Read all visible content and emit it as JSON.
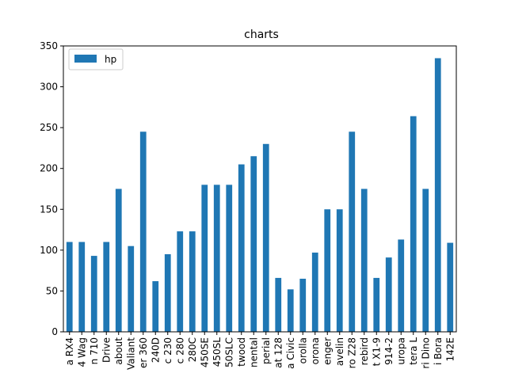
{
  "chart_data": {
    "type": "bar",
    "title": "charts",
    "xlabel": "",
    "ylabel": "",
    "ylim": [
      0,
      350
    ],
    "yticks": [
      0,
      50,
      100,
      150,
      200,
      250,
      300,
      350
    ],
    "legend": {
      "position": "top-left",
      "entries": [
        "hp"
      ]
    },
    "grid": false,
    "bar_color": "#1f77b4",
    "categories": [
      "a RX4",
      "4 Wag",
      "n 710",
      "Drive",
      "about",
      "Valiant",
      "er 360",
      "240D",
      "c 230",
      "c 280",
      "280C",
      "450SE",
      "450SL",
      "50SLC",
      "twood",
      "nental",
      "perial",
      "at 128",
      "a Civic",
      "orolla",
      "orona",
      "enger",
      "avelin",
      "ro Z28",
      "rebird",
      "t X1-9",
      "914-2",
      "uropa",
      "tera L",
      "ri Dino",
      "i Bora",
      "142E"
    ],
    "series": [
      {
        "name": "hp",
        "values": [
          110,
          110,
          93,
          110,
          175,
          105,
          245,
          62,
          95,
          123,
          123,
          180,
          180,
          180,
          205,
          215,
          230,
          66,
          52,
          65,
          97,
          150,
          150,
          245,
          175,
          66,
          91,
          113,
          264,
          175,
          335,
          109
        ]
      }
    ]
  }
}
